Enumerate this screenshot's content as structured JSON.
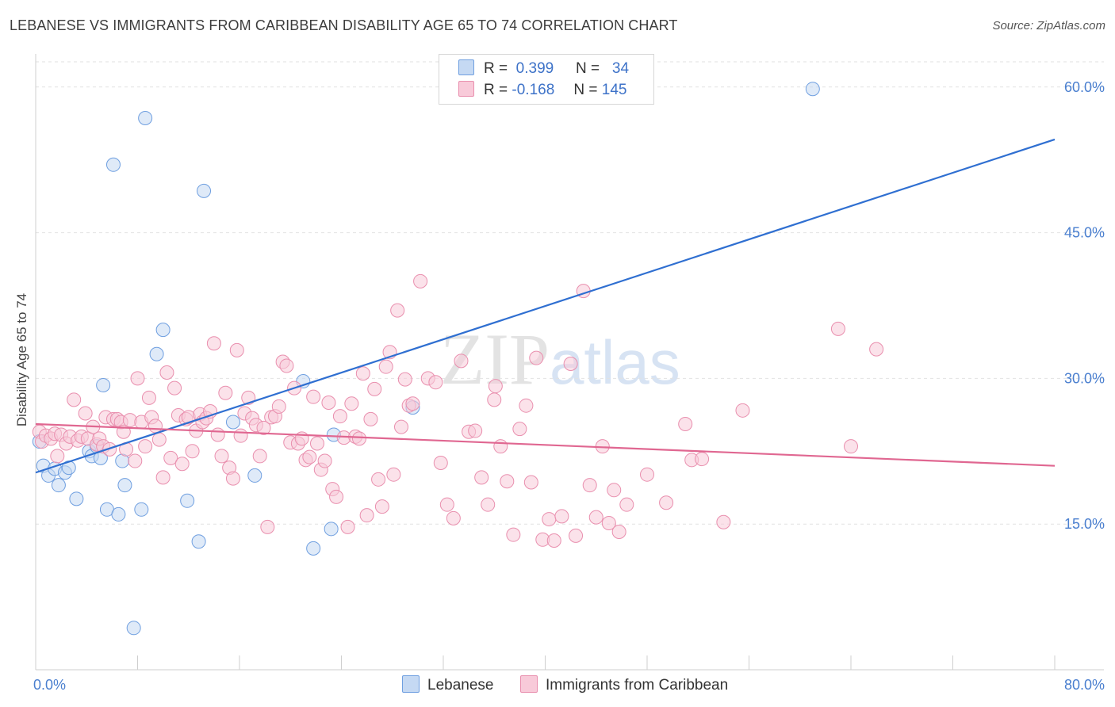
{
  "title": "LEBANESE VS IMMIGRANTS FROM CARIBBEAN DISABILITY AGE 65 TO 74 CORRELATION CHART",
  "source": "Source: ZipAtlas.com",
  "watermark": {
    "zip": "ZIP",
    "atlas": "atlas"
  },
  "legend": {
    "rows": [
      {
        "r_label": "R =",
        "r_value": "0.399",
        "n_label": "N =",
        "n_value": "34"
      },
      {
        "r_label": "R =",
        "r_value": "-0.168",
        "n_label": "N =",
        "n_value": "145"
      }
    ]
  },
  "chart_data": {
    "type": "scatter",
    "xlabel": "",
    "ylabel": "Disability Age 65 to 74",
    "xlim": [
      0,
      80
    ],
    "ylim": [
      0,
      63
    ],
    "x_tick_labels": [
      "0.0%",
      "80.0%"
    ],
    "y_ticks": [
      15,
      30,
      45,
      60
    ],
    "y_tick_labels": [
      "15.0%",
      "30.0%",
      "45.0%",
      "60.0%"
    ],
    "grid": true,
    "legend_position": "bottom",
    "series": [
      {
        "name": "Lebanese",
        "color": "#6f9fe0",
        "fill": "#c5d9f3",
        "trend": {
          "x": [
            0,
            80
          ],
          "y": [
            20.3,
            54.6
          ],
          "color": "#2f6fd1"
        },
        "points": [
          [
            0.3,
            23.5
          ],
          [
            0.6,
            21
          ],
          [
            1.0,
            20
          ],
          [
            1.5,
            20.7
          ],
          [
            1.8,
            19
          ],
          [
            2.3,
            20.3
          ],
          [
            2.6,
            20.8
          ],
          [
            3.2,
            17.6
          ],
          [
            4.2,
            22.5
          ],
          [
            4.4,
            22
          ],
          [
            4.8,
            23
          ],
          [
            5.1,
            21.8
          ],
          [
            5.3,
            29.3
          ],
          [
            5.6,
            16.5
          ],
          [
            6.1,
            52
          ],
          [
            6.5,
            16
          ],
          [
            6.8,
            21.5
          ],
          [
            7.0,
            19
          ],
          [
            7.7,
            4.3
          ],
          [
            8.3,
            16.5
          ],
          [
            8.6,
            56.8
          ],
          [
            9.5,
            32.5
          ],
          [
            10.0,
            35
          ],
          [
            11.9,
            17.4
          ],
          [
            12.8,
            13.2
          ],
          [
            13.2,
            49.3
          ],
          [
            15.5,
            25.5
          ],
          [
            17.2,
            20
          ],
          [
            21.0,
            29.7
          ],
          [
            21.8,
            12.5
          ],
          [
            23.2,
            14.5
          ],
          [
            23.4,
            24.2
          ],
          [
            29.6,
            27
          ],
          [
            61.0,
            59.8
          ]
        ]
      },
      {
        "name": "Immigrants from Caribbean",
        "color": "#e98fae",
        "fill": "#f8cad9",
        "trend": {
          "x": [
            0,
            80
          ],
          "y": [
            25.3,
            21.0
          ],
          "color": "#e06791"
        },
        "points": [
          [
            0.3,
            24.5
          ],
          [
            0.5,
            23.5
          ],
          [
            0.8,
            24.1
          ],
          [
            1.2,
            23.8
          ],
          [
            1.5,
            24.3
          ],
          [
            1.7,
            22
          ],
          [
            2.0,
            24.2
          ],
          [
            2.4,
            23.3
          ],
          [
            2.7,
            24
          ],
          [
            3.0,
            27.8
          ],
          [
            3.3,
            23.6
          ],
          [
            3.6,
            24
          ],
          [
            3.9,
            26.4
          ],
          [
            4.1,
            23.8
          ],
          [
            4.5,
            25
          ],
          [
            4.8,
            23.2
          ],
          [
            5.0,
            23.8
          ],
          [
            5.3,
            23
          ],
          [
            5.5,
            26
          ],
          [
            5.8,
            22.7
          ],
          [
            6.1,
            25.8
          ],
          [
            6.4,
            25.8
          ],
          [
            6.7,
            25.5
          ],
          [
            6.9,
            24.5
          ],
          [
            7.1,
            22.7
          ],
          [
            7.4,
            25.7
          ],
          [
            7.8,
            21.5
          ],
          [
            8.0,
            30
          ],
          [
            8.3,
            25.5
          ],
          [
            8.6,
            23
          ],
          [
            8.9,
            28
          ],
          [
            9.1,
            26
          ],
          [
            9.4,
            25.1
          ],
          [
            9.7,
            23.7
          ],
          [
            10.0,
            19.8
          ],
          [
            10.3,
            30.6
          ],
          [
            10.6,
            21.8
          ],
          [
            10.9,
            29
          ],
          [
            11.2,
            26.2
          ],
          [
            11.5,
            21.2
          ],
          [
            11.8,
            25.8
          ],
          [
            12.0,
            26
          ],
          [
            12.3,
            22.5
          ],
          [
            12.6,
            24.6
          ],
          [
            12.9,
            26.3
          ],
          [
            13.1,
            25.5
          ],
          [
            13.4,
            25.9
          ],
          [
            13.7,
            26.6
          ],
          [
            14.0,
            33.6
          ],
          [
            14.3,
            24.2
          ],
          [
            14.6,
            22
          ],
          [
            14.9,
            28.5
          ],
          [
            15.2,
            20.8
          ],
          [
            15.5,
            19.7
          ],
          [
            15.8,
            32.9
          ],
          [
            16.1,
            24.1
          ],
          [
            16.4,
            26.4
          ],
          [
            16.7,
            28
          ],
          [
            17.0,
            25.9
          ],
          [
            17.3,
            25.2
          ],
          [
            17.6,
            22
          ],
          [
            17.9,
            24.9
          ],
          [
            18.2,
            14.7
          ],
          [
            18.5,
            26
          ],
          [
            18.8,
            26.1
          ],
          [
            19.1,
            27.1
          ],
          [
            19.4,
            31.7
          ],
          [
            19.7,
            31.3
          ],
          [
            20.0,
            23.4
          ],
          [
            20.3,
            29
          ],
          [
            20.6,
            23.3
          ],
          [
            20.9,
            23.8
          ],
          [
            21.2,
            21.6
          ],
          [
            21.5,
            21.9
          ],
          [
            21.8,
            28.1
          ],
          [
            22.1,
            23.3
          ],
          [
            22.4,
            20.6
          ],
          [
            22.7,
            21.5
          ],
          [
            23.0,
            27.5
          ],
          [
            23.3,
            18.6
          ],
          [
            23.6,
            17.8
          ],
          [
            23.9,
            26.1
          ],
          [
            24.2,
            23.9
          ],
          [
            24.5,
            14.7
          ],
          [
            24.8,
            27.4
          ],
          [
            25.1,
            24
          ],
          [
            25.4,
            23.8
          ],
          [
            25.7,
            30.5
          ],
          [
            26.0,
            15.9
          ],
          [
            26.3,
            25.8
          ],
          [
            26.6,
            28.9
          ],
          [
            26.9,
            19.6
          ],
          [
            27.2,
            16.8
          ],
          [
            27.5,
            31.2
          ],
          [
            27.8,
            32.7
          ],
          [
            28.1,
            20.1
          ],
          [
            28.4,
            37
          ],
          [
            28.7,
            25
          ],
          [
            29.0,
            29.9
          ],
          [
            29.3,
            27.2
          ],
          [
            29.6,
            27.4
          ],
          [
            30.2,
            40
          ],
          [
            30.8,
            30
          ],
          [
            31.4,
            29.6
          ],
          [
            31.8,
            21.3
          ],
          [
            32.3,
            17
          ],
          [
            32.8,
            15.6
          ],
          [
            33.4,
            31.8
          ],
          [
            34.0,
            24.5
          ],
          [
            34.5,
            24.6
          ],
          [
            35.0,
            19.8
          ],
          [
            35.5,
            17
          ],
          [
            36.0,
            27.8
          ],
          [
            36.1,
            29.2
          ],
          [
            36.5,
            23
          ],
          [
            37.0,
            19.4
          ],
          [
            37.5,
            13.9
          ],
          [
            38.0,
            24.8
          ],
          [
            38.5,
            27.2
          ],
          [
            38.9,
            19.3
          ],
          [
            39.3,
            32.1
          ],
          [
            39.8,
            13.4
          ],
          [
            40.3,
            15.5
          ],
          [
            40.7,
            13.3
          ],
          [
            41.3,
            15.8
          ],
          [
            42.0,
            31.5
          ],
          [
            42.4,
            13.8
          ],
          [
            43.0,
            39
          ],
          [
            43.5,
            19
          ],
          [
            44.0,
            15.7
          ],
          [
            44.5,
            23
          ],
          [
            45.0,
            15.1
          ],
          [
            45.4,
            18.5
          ],
          [
            45.8,
            14.2
          ],
          [
            46.4,
            17
          ],
          [
            48.0,
            20.1
          ],
          [
            49.5,
            17.2
          ],
          [
            51.0,
            25.3
          ],
          [
            51.5,
            21.6
          ],
          [
            52.3,
            21.7
          ],
          [
            54.0,
            15.2
          ],
          [
            55.5,
            26.7
          ],
          [
            63.0,
            35.1
          ],
          [
            64.0,
            23
          ],
          [
            66.0,
            33
          ]
        ]
      }
    ]
  }
}
